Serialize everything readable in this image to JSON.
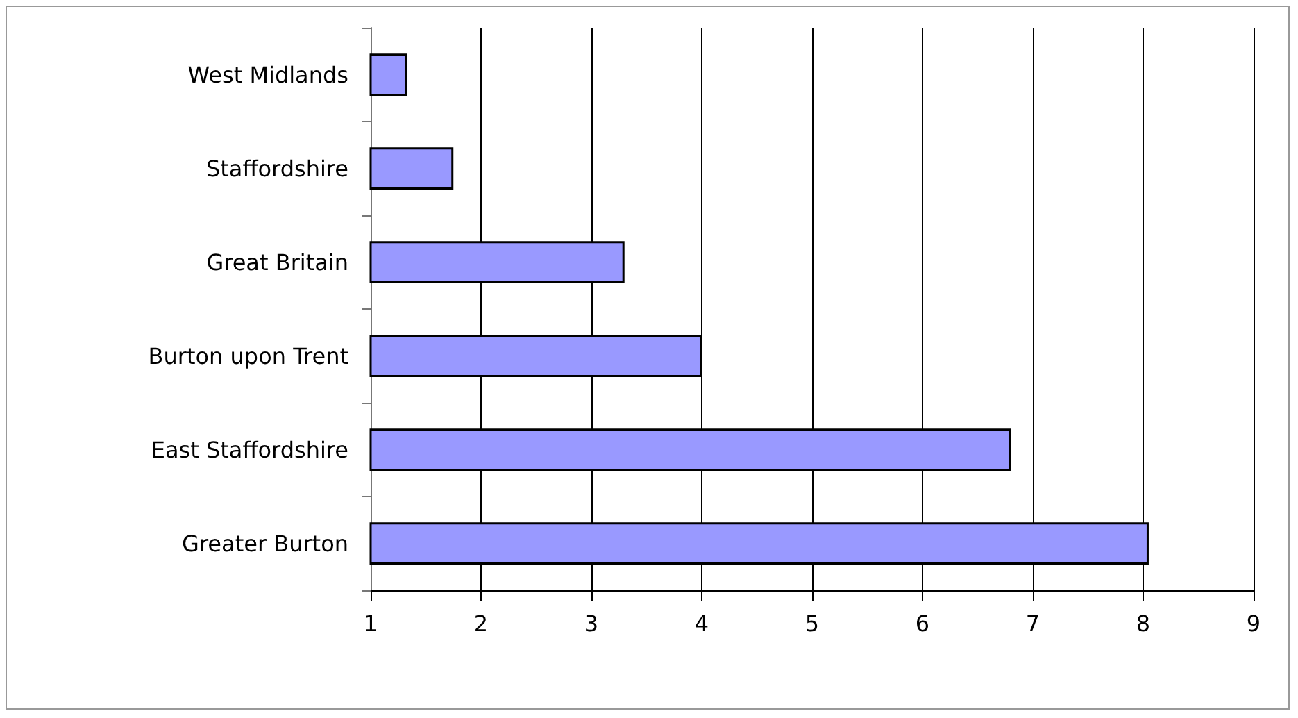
{
  "chart_data": {
    "type": "bar",
    "orientation": "horizontal",
    "categories": [
      "West Midlands",
      "Staffordshire",
      "Great Britain",
      "Burton upon Trent",
      "East Staffordshire",
      "Greater Burton"
    ],
    "values": [
      1.33,
      1.75,
      3.3,
      4.0,
      6.8,
      8.05
    ],
    "color": "#9999ff",
    "xlim": [
      1,
      9
    ],
    "xticks": [
      1,
      2,
      3,
      4,
      5,
      6,
      7,
      8,
      9
    ],
    "grid": "x"
  }
}
